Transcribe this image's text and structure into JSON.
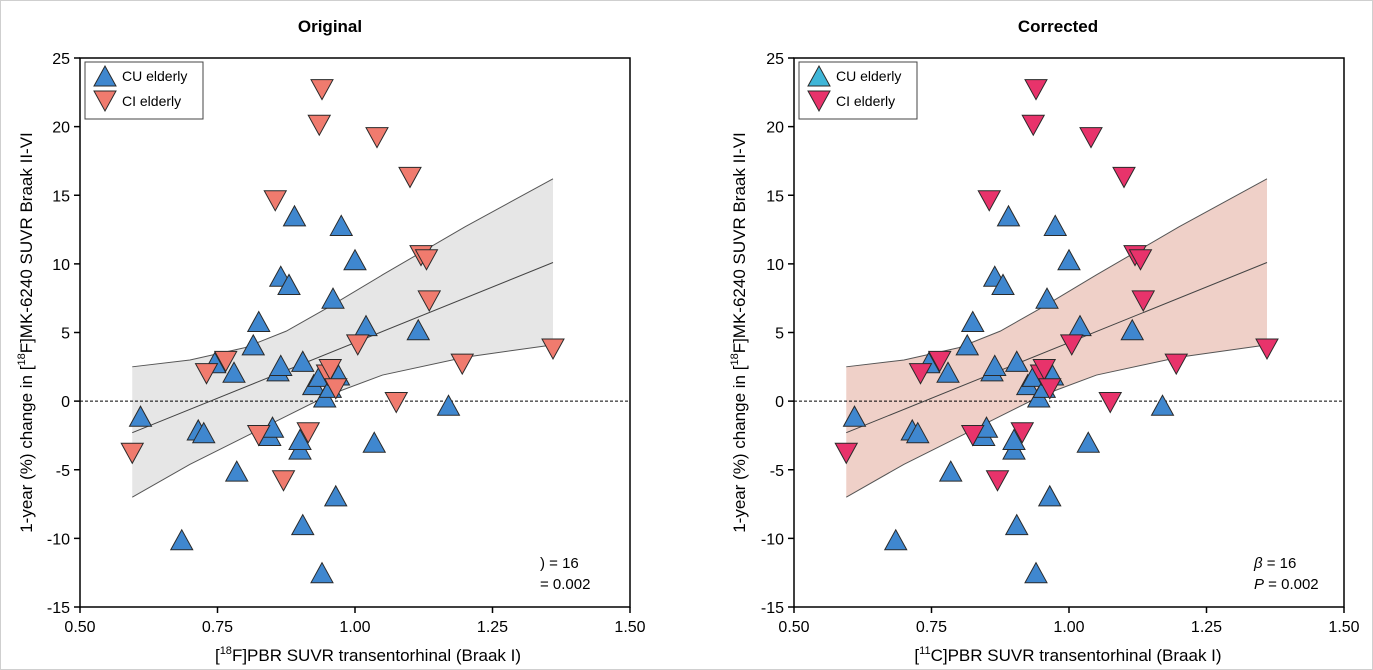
{
  "chart_data": [
    {
      "type": "scatter",
      "title": "Original",
      "xlabel_parts": [
        "[",
        "18",
        "F]PBR SUVR transentorhinal (Braak I)"
      ],
      "ylabel_parts": [
        "1-year (%) change in [",
        "18",
        "F]MK-6240 SUVR Braak II-VI"
      ],
      "xlim": [
        0.5,
        1.5
      ],
      "ylim": [
        -15,
        25
      ],
      "xticks": [
        "0.50",
        "0.75",
        "1.00",
        "1.25",
        "1.50"
      ],
      "yticks": [
        "-15",
        "-10",
        "-5",
        "0",
        "5",
        "10",
        "15",
        "20",
        "25"
      ],
      "grid": false,
      "legend_position": "top-left",
      "series": [
        {
          "name": "CU elderly",
          "marker": "triangle-up",
          "color": "#3f87cf",
          "points": [
            [
              0.61,
              -1.1
            ],
            [
              0.685,
              -10.1
            ],
            [
              0.715,
              -2.1
            ],
            [
              0.725,
              -2.3
            ],
            [
              0.745,
              2.8
            ],
            [
              0.78,
              2.1
            ],
            [
              0.785,
              -5.1
            ],
            [
              0.815,
              4.1
            ],
            [
              0.825,
              5.8
            ],
            [
              0.845,
              -2.5
            ],
            [
              0.85,
              -1.9
            ],
            [
              0.86,
              2.2
            ],
            [
              0.865,
              2.6
            ],
            [
              0.865,
              9.1
            ],
            [
              0.88,
              8.5
            ],
            [
              0.89,
              13.5
            ],
            [
              0.9,
              -3.5
            ],
            [
              0.9,
              -2.8
            ],
            [
              0.905,
              2.9
            ],
            [
              0.905,
              -9.0
            ],
            [
              0.925,
              1.2
            ],
            [
              0.935,
              1.8
            ],
            [
              0.94,
              -12.5
            ],
            [
              0.945,
              0.3
            ],
            [
              0.955,
              1.0
            ],
            [
              0.96,
              7.5
            ],
            [
              0.965,
              -6.9
            ],
            [
              0.97,
              1.9
            ],
            [
              0.975,
              12.8
            ],
            [
              1.0,
              10.3
            ],
            [
              1.02,
              5.5
            ],
            [
              1.035,
              -3.0
            ],
            [
              1.115,
              5.2
            ],
            [
              1.17,
              -0.3
            ]
          ]
        },
        {
          "name": "CI elderly",
          "marker": "triangle-down",
          "color": "#f07b6e",
          "points": [
            [
              0.595,
              -3.8
            ],
            [
              0.73,
              2.0
            ],
            [
              0.765,
              2.9
            ],
            [
              0.825,
              -2.5
            ],
            [
              0.855,
              14.6
            ],
            [
              0.87,
              -5.8
            ],
            [
              0.915,
              -2.3
            ],
            [
              0.935,
              20.1
            ],
            [
              0.94,
              22.7
            ],
            [
              0.95,
              1.9
            ],
            [
              0.955,
              2.3
            ],
            [
              0.965,
              0.9
            ],
            [
              1.005,
              4.1
            ],
            [
              1.04,
              19.2
            ],
            [
              1.075,
              -0.1
            ],
            [
              1.1,
              16.3
            ],
            [
              1.12,
              10.6
            ],
            [
              1.13,
              10.3
            ],
            [
              1.135,
              7.3
            ],
            [
              1.195,
              2.7
            ],
            [
              1.36,
              3.8
            ]
          ]
        }
      ],
      "regression": {
        "x_range": [
          0.595,
          1.36
        ],
        "y_range": [
          -2.3,
          10.1
        ]
      },
      "ci_band": {
        "color": "#e6e6e6",
        "upper": [
          [
            0.595,
            2.5
          ],
          [
            0.7,
            3.0
          ],
          [
            0.8,
            3.9
          ],
          [
            0.875,
            5.1
          ],
          [
            0.95,
            6.8
          ],
          [
            1.05,
            9.2
          ],
          [
            1.2,
            12.7
          ],
          [
            1.36,
            16.2
          ]
        ],
        "lower": [
          [
            0.595,
            -7.0
          ],
          [
            0.7,
            -4.6
          ],
          [
            0.8,
            -2.6
          ],
          [
            0.875,
            -1.1
          ],
          [
            0.95,
            0.4
          ],
          [
            1.05,
            1.9
          ],
          [
            1.2,
            3.2
          ],
          [
            1.36,
            4.1
          ]
        ]
      },
      "annotation_lines": [
        ") = 16",
        "= 0.002"
      ]
    },
    {
      "type": "scatter",
      "title": "Corrected",
      "xlabel_parts": [
        "[",
        "11",
        "C]PBR SUVR transentorhinal (Braak I)"
      ],
      "ylabel_parts": [
        "1-year (%) change in [",
        "18",
        "F]MK-6240 SUVR Braak II-VI"
      ],
      "xlim": [
        0.5,
        1.5
      ],
      "ylim": [
        -15,
        25
      ],
      "xticks": [
        "0.50",
        "0.75",
        "1.00",
        "1.25",
        "1.50"
      ],
      "yticks": [
        "-15",
        "-10",
        "-5",
        "0",
        "5",
        "10",
        "15",
        "20",
        "25"
      ],
      "grid": false,
      "legend_position": "top-left",
      "series": [
        {
          "name": "CU elderly",
          "marker": "triangle-up",
          "color": "#3f87cf",
          "legend_color": "#3fb6d8",
          "points": "same-as-original"
        },
        {
          "name": "CI elderly",
          "marker": "triangle-down",
          "color": "#e8336b",
          "points": "same-as-original"
        }
      ],
      "regression": {
        "x_range": [
          0.595,
          1.36
        ],
        "y_range": [
          -2.3,
          10.1
        ]
      },
      "ci_band": {
        "color": "#efd0c8",
        "upper": "same-as-original",
        "lower": "same-as-original"
      },
      "annotation_parts": [
        {
          "var": "β",
          "text": " = 16"
        },
        {
          "var": "P",
          "text": " = 0.002"
        }
      ]
    }
  ]
}
